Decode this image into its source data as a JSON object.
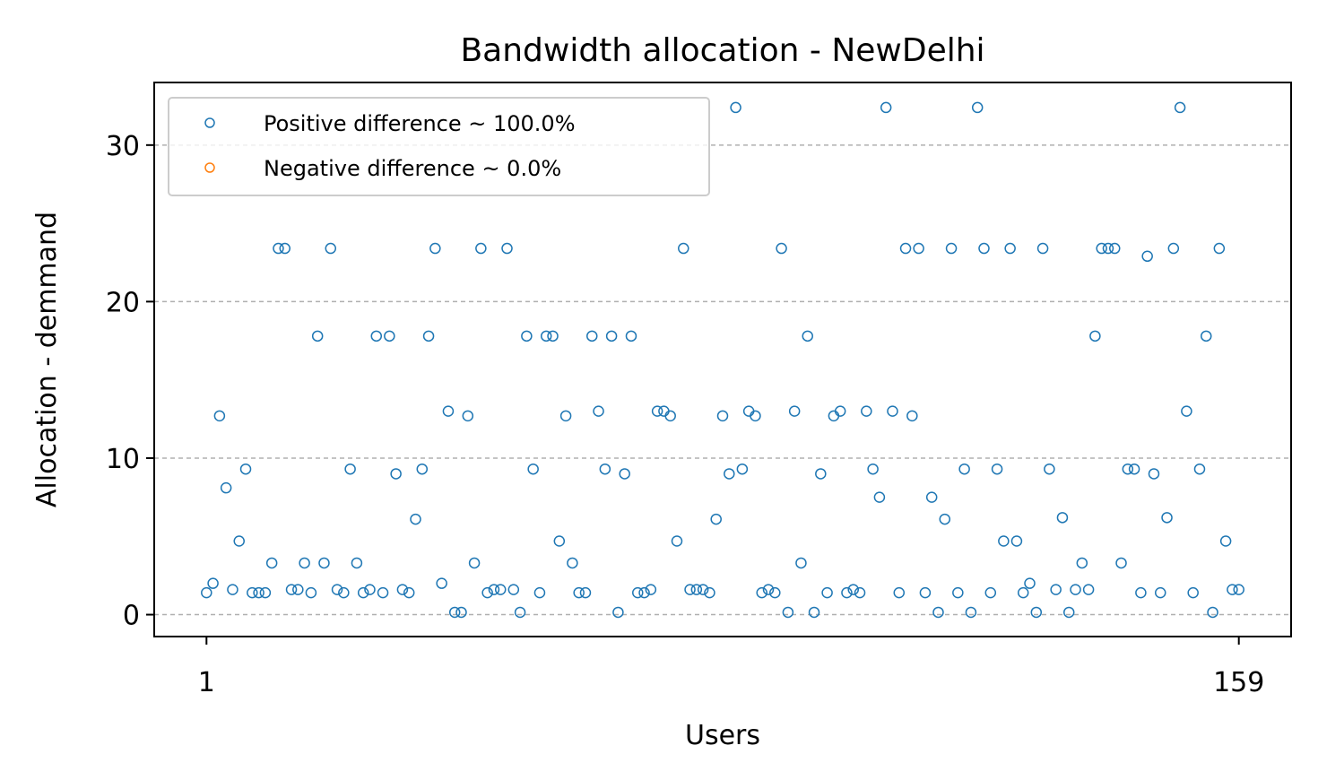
{
  "chart_data": {
    "type": "scatter",
    "title": "Bandwidth allocation - NewDelhi",
    "xlabel": "Users",
    "ylabel": "Allocation - demmand",
    "xlim": [
      -7,
      167
    ],
    "ylim": [
      -1.4,
      34
    ],
    "xticks": [
      1,
      159
    ],
    "yticks": [
      0,
      10,
      20,
      30
    ],
    "grid": "y-dashed",
    "legend_position": "upper-left",
    "series": [
      {
        "name": "Positive difference ~ 100.0%",
        "color": "#1f77b4",
        "marker": "open-circle",
        "x": [
          1,
          2,
          3,
          4,
          5,
          6,
          7,
          8,
          9,
          10,
          11,
          12,
          13,
          14,
          15,
          16,
          17,
          18,
          19,
          20,
          21,
          22,
          23,
          24,
          25,
          26,
          27,
          28,
          29,
          30,
          31,
          32,
          33,
          34,
          35,
          36,
          37,
          38,
          39,
          40,
          41,
          42,
          43,
          44,
          45,
          46,
          47,
          48,
          49,
          50,
          51,
          52,
          53,
          54,
          55,
          56,
          57,
          58,
          59,
          60,
          61,
          62,
          63,
          64,
          65,
          66,
          67,
          68,
          69,
          70,
          71,
          72,
          73,
          74,
          75,
          76,
          77,
          78,
          79,
          80,
          81,
          82,
          83,
          84,
          85,
          86,
          87,
          88,
          89,
          90,
          91,
          92,
          93,
          94,
          95,
          96,
          97,
          98,
          99,
          100,
          101,
          102,
          103,
          104,
          105,
          106,
          107,
          108,
          109,
          110,
          111,
          112,
          113,
          114,
          115,
          116,
          117,
          118,
          119,
          120,
          121,
          122,
          123,
          124,
          125,
          126,
          127,
          128,
          129,
          130,
          131,
          132,
          133,
          134,
          135,
          136,
          137,
          138,
          139,
          140,
          141,
          142,
          143,
          144,
          145,
          146,
          147,
          148,
          149,
          150,
          151,
          152,
          153,
          154,
          155,
          156,
          157,
          158,
          159
        ],
        "y": [
          1.4,
          2.0,
          12.7,
          8.1,
          1.6,
          4.7,
          9.3,
          1.4,
          1.4,
          1.4,
          3.3,
          23.4,
          23.4,
          1.6,
          1.6,
          3.3,
          1.4,
          17.8,
          3.3,
          23.4,
          1.6,
          1.4,
          9.3,
          3.3,
          1.4,
          1.6,
          17.8,
          1.4,
          17.8,
          9.0,
          1.6,
          1.4,
          6.1,
          9.3,
          17.8,
          23.4,
          2.0,
          13.0,
          0.15,
          0.15,
          12.7,
          3.3,
          23.4,
          1.4,
          1.6,
          1.6,
          23.4,
          1.6,
          0.15,
          17.8,
          9.3,
          1.4,
          17.8,
          17.8,
          4.7,
          12.7,
          3.3,
          1.4,
          1.4,
          17.8,
          13.0,
          9.3,
          17.8,
          0.15,
          9.0,
          17.8,
          1.4,
          1.4,
          1.6,
          13.0,
          13.0,
          12.7,
          4.7,
          23.4,
          1.6,
          1.6,
          1.6,
          1.4,
          6.1,
          12.7,
          9.0,
          32.4,
          9.3,
          13.0,
          12.7,
          1.4,
          1.6,
          1.4,
          23.4,
          0.15,
          13.0,
          3.3,
          17.8,
          0.15,
          9.0,
          1.4,
          12.7,
          13.0,
          1.4,
          1.6,
          1.4,
          13.0,
          9.3,
          7.5,
          32.4,
          13.0,
          1.4,
          23.4,
          12.7,
          23.4,
          1.4,
          7.5,
          0.15,
          6.1,
          23.4,
          1.4,
          9.3,
          0.15,
          32.4,
          23.4,
          1.4,
          9.3,
          4.7,
          23.4,
          4.7,
          1.4,
          2.0,
          0.15,
          23.4,
          9.3,
          1.6,
          6.2,
          0.15,
          1.6,
          3.3,
          1.6,
          17.8,
          23.4,
          23.4,
          23.4,
          3.3,
          9.3,
          9.3,
          1.4,
          22.9,
          9.0,
          1.4,
          6.2,
          23.4,
          32.4,
          13.0,
          1.4,
          9.3,
          17.8,
          0.15,
          23.4,
          4.7,
          1.6,
          1.6
        ]
      },
      {
        "name": "Negative difference ~ 0.0%",
        "color": "#ff7f0e",
        "marker": "open-circle",
        "x": [],
        "y": []
      }
    ]
  }
}
